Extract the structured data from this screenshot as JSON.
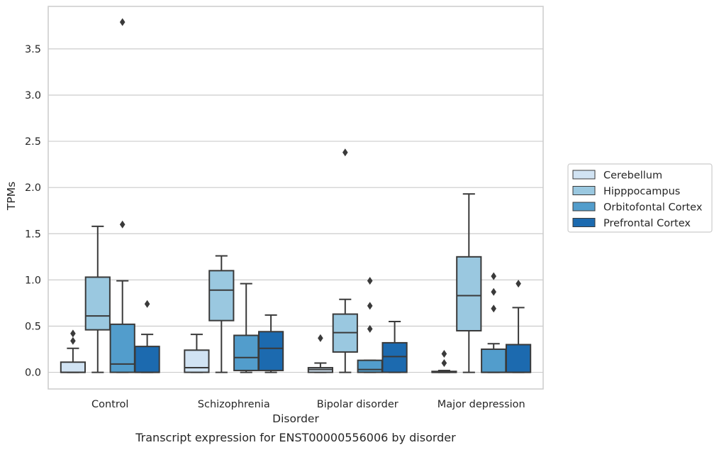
{
  "chart_data": {
    "type": "box",
    "caption": "Transcript expression for ENST00000556006 by disorder",
    "xlabel": "Disorder",
    "ylabel": "TPMs",
    "ylim": [
      -0.18,
      3.96
    ],
    "yticks": [
      0.0,
      0.5,
      1.0,
      1.5,
      2.0,
      2.5,
      3.0,
      3.5
    ],
    "ytick_labels": [
      "0.0",
      "0.5",
      "1.0",
      "1.5",
      "2.0",
      "2.5",
      "3.0",
      "3.5"
    ],
    "grid": "horizontal",
    "legend_position": "outside-right",
    "categories": [
      "Control",
      "Schizophrenia",
      "Bipolar disorder",
      "Major depression"
    ],
    "series": [
      {
        "name": "Cerebellum",
        "color": "#d1e3f3",
        "boxes": [
          {
            "whislo": 0.0,
            "q1": 0.0,
            "med": 0.0,
            "q3": 0.11,
            "whishi": 0.26,
            "fliers": [
              0.34,
              0.42
            ]
          },
          {
            "whislo": 0.0,
            "q1": 0.0,
            "med": 0.05,
            "q3": 0.24,
            "whishi": 0.41,
            "fliers": []
          },
          {
            "whislo": 0.0,
            "q1": 0.0,
            "med": 0.03,
            "q3": 0.05,
            "whishi": 0.1,
            "fliers": [
              0.37
            ]
          },
          {
            "whislo": 0.0,
            "q1": 0.0,
            "med": 0.0,
            "q3": 0.01,
            "whishi": 0.02,
            "fliers": [
              0.1,
              0.2
            ]
          }
        ]
      },
      {
        "name": "Hipppocampus",
        "color": "#9ac8e0",
        "boxes": [
          {
            "whislo": 0.0,
            "q1": 0.46,
            "med": 0.61,
            "q3": 1.03,
            "whishi": 1.58,
            "fliers": []
          },
          {
            "whislo": 0.0,
            "q1": 0.56,
            "med": 0.89,
            "q3": 1.1,
            "whishi": 1.26,
            "fliers": []
          },
          {
            "whislo": 0.0,
            "q1": 0.22,
            "med": 0.43,
            "q3": 0.63,
            "whishi": 0.79,
            "fliers": [
              2.38
            ]
          },
          {
            "whislo": 0.0,
            "q1": 0.45,
            "med": 0.83,
            "q3": 1.25,
            "whishi": 1.93,
            "fliers": []
          }
        ]
      },
      {
        "name": "Orbitofontal Cortex",
        "color": "#529dcc",
        "boxes": [
          {
            "whislo": 0.0,
            "q1": 0.0,
            "med": 0.09,
            "q3": 0.52,
            "whishi": 0.99,
            "fliers": [
              1.6,
              3.79
            ]
          },
          {
            "whislo": 0.0,
            "q1": 0.02,
            "med": 0.16,
            "q3": 0.4,
            "whishi": 0.96,
            "fliers": []
          },
          {
            "whislo": 0.0,
            "q1": 0.0,
            "med": 0.03,
            "q3": 0.13,
            "whishi": 0.13,
            "fliers": [
              0.47,
              0.72,
              0.99
            ]
          },
          {
            "whislo": 0.0,
            "q1": 0.0,
            "med": 0.0,
            "q3": 0.25,
            "whishi": 0.31,
            "fliers": [
              0.69,
              0.87,
              1.04
            ]
          }
        ]
      },
      {
        "name": "Prefrontal Cortex",
        "color": "#1c6aaf",
        "boxes": [
          {
            "whislo": 0.0,
            "q1": 0.0,
            "med": 0.0,
            "q3": 0.28,
            "whishi": 0.41,
            "fliers": [
              0.74
            ]
          },
          {
            "whislo": 0.0,
            "q1": 0.02,
            "med": 0.26,
            "q3": 0.44,
            "whishi": 0.62,
            "fliers": []
          },
          {
            "whislo": 0.0,
            "q1": 0.0,
            "med": 0.17,
            "q3": 0.32,
            "whishi": 0.55,
            "fliers": []
          },
          {
            "whislo": 0.0,
            "q1": 0.0,
            "med": 0.0,
            "q3": 0.3,
            "whishi": 0.7,
            "fliers": [
              0.96
            ]
          }
        ]
      }
    ]
  }
}
